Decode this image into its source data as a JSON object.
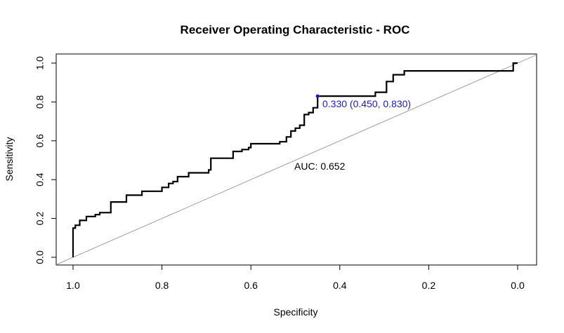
{
  "chart_data": {
    "type": "line",
    "title": "Receiver Operating Characteristic - ROC",
    "xlabel": "Specificity",
    "ylabel": "Sensitivity",
    "xlim": [
      1.0,
      0.0
    ],
    "ylim": [
      0.0,
      1.0
    ],
    "x_reversed": true,
    "x_ticks": [
      "1.0",
      "0.8",
      "0.6",
      "0.4",
      "0.2",
      "0.0"
    ],
    "y_ticks": [
      "0.0",
      "0.2",
      "0.4",
      "0.6",
      "0.8",
      "1.0"
    ],
    "grid": false,
    "series": [
      {
        "points": [
          [
            1.0,
            0.0
          ],
          [
            1.0,
            0.15
          ],
          [
            0.995,
            0.15
          ],
          [
            0.995,
            0.165
          ],
          [
            0.985,
            0.165
          ],
          [
            0.985,
            0.19
          ],
          [
            0.97,
            0.19
          ],
          [
            0.97,
            0.21
          ],
          [
            0.95,
            0.21
          ],
          [
            0.95,
            0.22
          ],
          [
            0.94,
            0.22
          ],
          [
            0.94,
            0.23
          ],
          [
            0.915,
            0.23
          ],
          [
            0.915,
            0.285
          ],
          [
            0.88,
            0.285
          ],
          [
            0.88,
            0.32
          ],
          [
            0.845,
            0.32
          ],
          [
            0.845,
            0.34
          ],
          [
            0.8,
            0.34
          ],
          [
            0.8,
            0.36
          ],
          [
            0.785,
            0.36
          ],
          [
            0.785,
            0.38
          ],
          [
            0.775,
            0.38
          ],
          [
            0.775,
            0.39
          ],
          [
            0.765,
            0.39
          ],
          [
            0.765,
            0.415
          ],
          [
            0.74,
            0.415
          ],
          [
            0.74,
            0.435
          ],
          [
            0.695,
            0.435
          ],
          [
            0.695,
            0.45
          ],
          [
            0.69,
            0.45
          ],
          [
            0.69,
            0.51
          ],
          [
            0.64,
            0.51
          ],
          [
            0.64,
            0.545
          ],
          [
            0.62,
            0.545
          ],
          [
            0.62,
            0.555
          ],
          [
            0.605,
            0.555
          ],
          [
            0.605,
            0.565
          ],
          [
            0.6,
            0.565
          ],
          [
            0.6,
            0.585
          ],
          [
            0.535,
            0.585
          ],
          [
            0.535,
            0.595
          ],
          [
            0.52,
            0.595
          ],
          [
            0.52,
            0.62
          ],
          [
            0.51,
            0.62
          ],
          [
            0.51,
            0.65
          ],
          [
            0.5,
            0.65
          ],
          [
            0.5,
            0.665
          ],
          [
            0.49,
            0.665
          ],
          [
            0.49,
            0.68
          ],
          [
            0.48,
            0.68
          ],
          [
            0.48,
            0.735
          ],
          [
            0.47,
            0.735
          ],
          [
            0.47,
            0.745
          ],
          [
            0.46,
            0.745
          ],
          [
            0.46,
            0.77
          ],
          [
            0.45,
            0.77
          ],
          [
            0.45,
            0.83
          ],
          [
            0.32,
            0.83
          ],
          [
            0.32,
            0.85
          ],
          [
            0.295,
            0.85
          ],
          [
            0.295,
            0.905
          ],
          [
            0.28,
            0.905
          ],
          [
            0.28,
            0.94
          ],
          [
            0.255,
            0.94
          ],
          [
            0.255,
            0.96
          ],
          [
            0.01,
            0.96
          ],
          [
            0.01,
            1.0
          ],
          [
            0.0,
            1.0
          ]
        ]
      }
    ],
    "reference_line": [
      [
        1.0,
        0.0
      ],
      [
        0.0,
        1.0
      ]
    ],
    "annotations": {
      "auc": "AUC: 0.652",
      "threshold": "0.330 (0.450, 0.830)",
      "threshold_point": [
        0.45,
        0.83
      ]
    },
    "colors": {
      "curve": "#000000",
      "diagonal": "#9e9e9e",
      "threshold": "#1a1acc"
    }
  }
}
